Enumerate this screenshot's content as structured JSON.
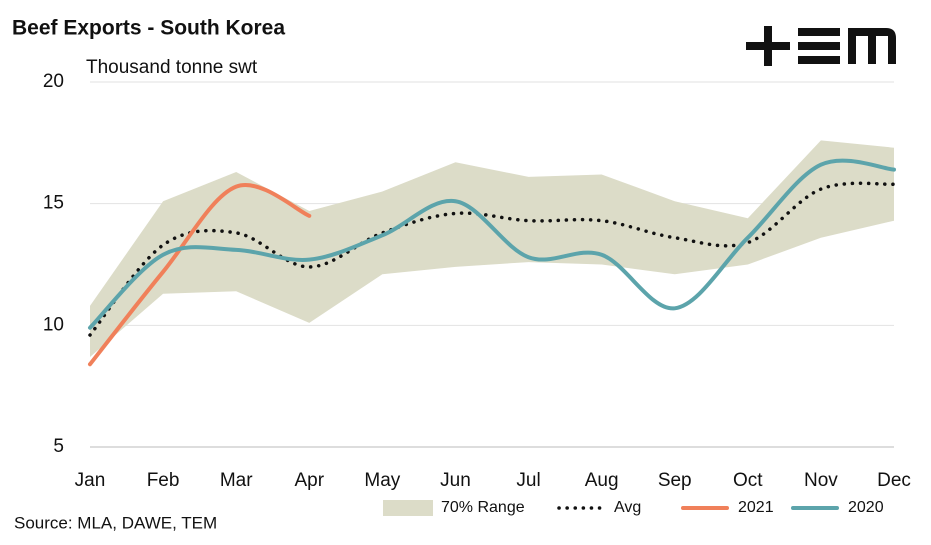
{
  "chart_data": {
    "type": "line",
    "title": "Beef Exports - South Korea",
    "subtitle": "Thousand tonne swt",
    "source": "Source: MLA, DAWE, TEM",
    "categories": [
      "Jan",
      "Feb",
      "Mar",
      "Apr",
      "May",
      "Jun",
      "Jul",
      "Aug",
      "Sep",
      "Oct",
      "Nov",
      "Dec"
    ],
    "ylim": [
      5,
      20
    ],
    "yticks": [
      5,
      10,
      15,
      20
    ],
    "grid": true,
    "legend": "bottom",
    "series": [
      {
        "name": "70% Range",
        "color": "#dcdcc8",
        "style": "band",
        "values": [
          10.8,
          15.1,
          16.3,
          14.7,
          15.5,
          16.7,
          16.1,
          16.2,
          15.1,
          14.4,
          17.6,
          17.3
        ],
        "lower": [
          8.7,
          11.3,
          11.4,
          10.1,
          12.1,
          12.4,
          12.6,
          12.5,
          12.1,
          12.5,
          13.6,
          14.3
        ]
      },
      {
        "name": "Avg",
        "color": "#111111",
        "style": "dotted",
        "values": [
          9.6,
          13.3,
          13.8,
          12.4,
          13.8,
          14.6,
          14.3,
          14.3,
          13.6,
          13.4,
          15.6,
          15.8
        ]
      },
      {
        "name": "2021",
        "color": "#f0805a",
        "style": "solid",
        "values": [
          8.4,
          12.2,
          15.7,
          14.5,
          null,
          null,
          null,
          null,
          null,
          null,
          null,
          null
        ]
      },
      {
        "name": "2020",
        "color": "#5ca4ab",
        "style": "solid",
        "values": [
          9.9,
          12.9,
          13.1,
          12.7,
          13.7,
          15.1,
          12.8,
          12.9,
          10.7,
          13.6,
          16.6,
          16.4
        ]
      }
    ]
  }
}
